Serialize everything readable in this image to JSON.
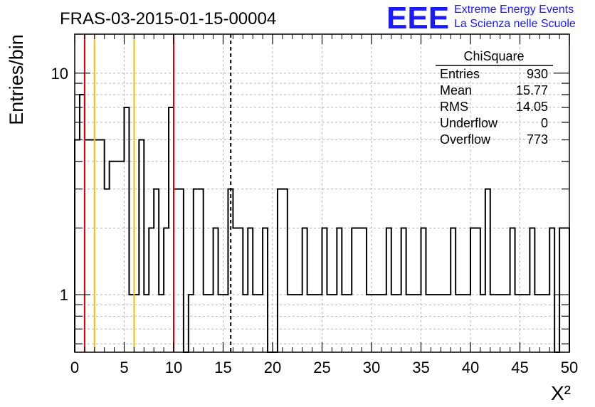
{
  "header": {
    "run_title": "FRAS-03-2015-01-15-00004",
    "logo_text": "EEE",
    "logo_line1": "Extreme Energy Events",
    "logo_line2": "La Scienza nelle Scuole",
    "logo_color": "#1a1aff"
  },
  "stats_box": {
    "title": "ChiSquare",
    "rows": [
      {
        "label": "Entries",
        "value": "930"
      },
      {
        "label": "Mean",
        "value": "15.77"
      },
      {
        "label": "RMS",
        "value": "14.05"
      },
      {
        "label": "Underflow",
        "value": "0"
      },
      {
        "label": "Overflow",
        "value": "773"
      }
    ]
  },
  "chart_data": {
    "type": "histogram",
    "title": "FRAS-03-2015-01-15-00004",
    "xlabel": "X²",
    "ylabel": "Entries/bin",
    "xlim": [
      0,
      50
    ],
    "ylim": [
      0.55,
      15
    ],
    "yscale": "log",
    "grid": true,
    "bin_width": 0.5,
    "x_ticks": [
      0,
      5,
      10,
      15,
      20,
      25,
      30,
      35,
      40,
      45,
      50
    ],
    "x_tick_labels": [
      "0",
      "5",
      "10",
      "15",
      "20",
      "25",
      "30",
      "35",
      "40",
      "45",
      "50"
    ],
    "y_ticks": [
      1,
      10
    ],
    "y_tick_labels": [
      "1",
      "10"
    ],
    "bin_counts": [
      5,
      8,
      5,
      5,
      5,
      5,
      3,
      4,
      4,
      4,
      7,
      1,
      1,
      5,
      1,
      2,
      3,
      1,
      2,
      7,
      3,
      3,
      0,
      1,
      3,
      3,
      1,
      1,
      2,
      1,
      1,
      3,
      2,
      2,
      1,
      2,
      1,
      1,
      2,
      0,
      0,
      3,
      3,
      1,
      1,
      1,
      2,
      1,
      1,
      1,
      2,
      1,
      1,
      2,
      1,
      1,
      2,
      2,
      2,
      1,
      1,
      1,
      1,
      2,
      1,
      1,
      2,
      1,
      1,
      1,
      2,
      1,
      1,
      1,
      1,
      1,
      2,
      1,
      1,
      1,
      2,
      2,
      1,
      3,
      1,
      1,
      1,
      1,
      2,
      1,
      1,
      1,
      2,
      1,
      1,
      1,
      2,
      0,
      2,
      2
    ],
    "vertical_lines": [
      {
        "x": 1,
        "color": "#dd0000",
        "style": "solid"
      },
      {
        "x": 2,
        "color": "#f2c200",
        "style": "solid"
      },
      {
        "x": 6,
        "color": "#f2c200",
        "style": "solid"
      },
      {
        "x": 10,
        "color": "#dd0000",
        "style": "solid"
      },
      {
        "x": 15.77,
        "color": "#000000",
        "style": "dashed"
      }
    ],
    "line_color": "#000000"
  }
}
